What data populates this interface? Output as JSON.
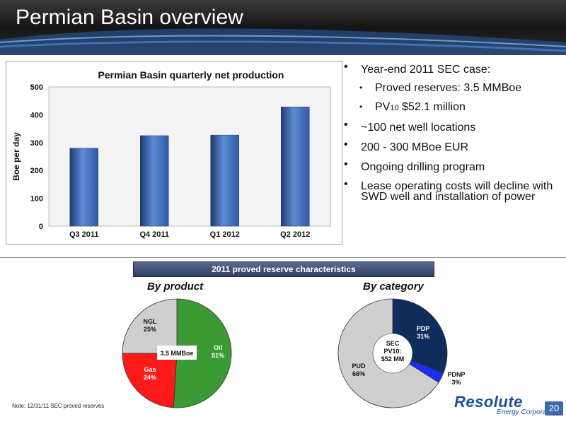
{
  "slide": {
    "title": "Permian Basin overview",
    "page_number": "20",
    "note": "Note:  12/31/11 SEC proved reserves",
    "logo_text": "Resolute",
    "logo_subtext": "Energy Corporation",
    "banner": "2011 proved reserve characteristics",
    "by_product_title": "By product",
    "by_category_title": "By category"
  },
  "bullets": {
    "b1": "Year-end 2011 SEC case:",
    "b1a": "Proved reserves:  3.5 MMBoe",
    "b1b_prefix": "PV",
    "b1b_sub": "10",
    "b1b_suffix": " $52.1 million",
    "b2": "~100 net well locations",
    "b3": "200 - 300 MBoe EUR",
    "b4": "Ongoing drilling program",
    "b5": "Lease operating costs will decline with SWD well and installation of power"
  },
  "chart_data": [
    {
      "type": "bar",
      "title": "Permian Basin quarterly net production",
      "xlabel": "",
      "ylabel": "Boe per day",
      "categories": [
        "Q3 2011",
        "Q4 2011",
        "Q1 2012",
        "Q2 2012"
      ],
      "values": [
        280,
        325,
        327,
        428
      ],
      "ylim": [
        0,
        500
      ],
      "yticks": [
        0,
        100,
        200,
        300,
        400,
        500
      ],
      "grid": false,
      "colors": {
        "bar": "#2f5aa3",
        "bar_light": "#5d8bd6",
        "bar_dark": "#1c3b70"
      }
    },
    {
      "type": "pie",
      "title": "By product",
      "center_label": "3.5 MMBoe",
      "slices": [
        {
          "label": "Oil",
          "value": 51,
          "display": "51%",
          "color": "#3c9a34"
        },
        {
          "label": "Gas",
          "value": 24,
          "display": "24%",
          "color": "#ff1a1a"
        },
        {
          "label": "NGL",
          "value": 25,
          "display": "25%",
          "color": "#cfcfcf"
        }
      ]
    },
    {
      "type": "pie",
      "title": "By category",
      "center_label_lines": [
        "SEC",
        "PV10:",
        "$52 MM"
      ],
      "slices": [
        {
          "label": "PDP",
          "value": 31,
          "display": "31%",
          "color": "#0f2d5c"
        },
        {
          "label": "PDNP",
          "value": 3,
          "display": "3%",
          "color": "#1a2cff"
        },
        {
          "label": "PUD",
          "value": 66,
          "display": "66%",
          "color": "#cfcfcf"
        }
      ]
    }
  ]
}
